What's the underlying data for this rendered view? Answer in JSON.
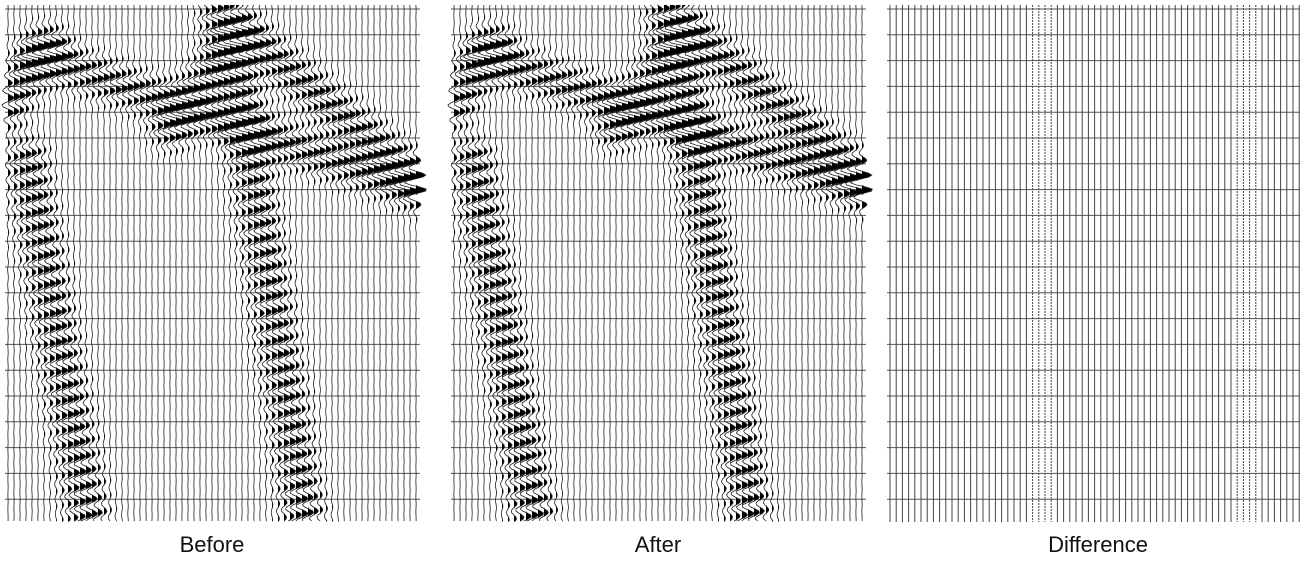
{
  "panels": [
    {
      "label": "Before"
    },
    {
      "label": "After"
    },
    {
      "label": "Difference"
    }
  ]
}
